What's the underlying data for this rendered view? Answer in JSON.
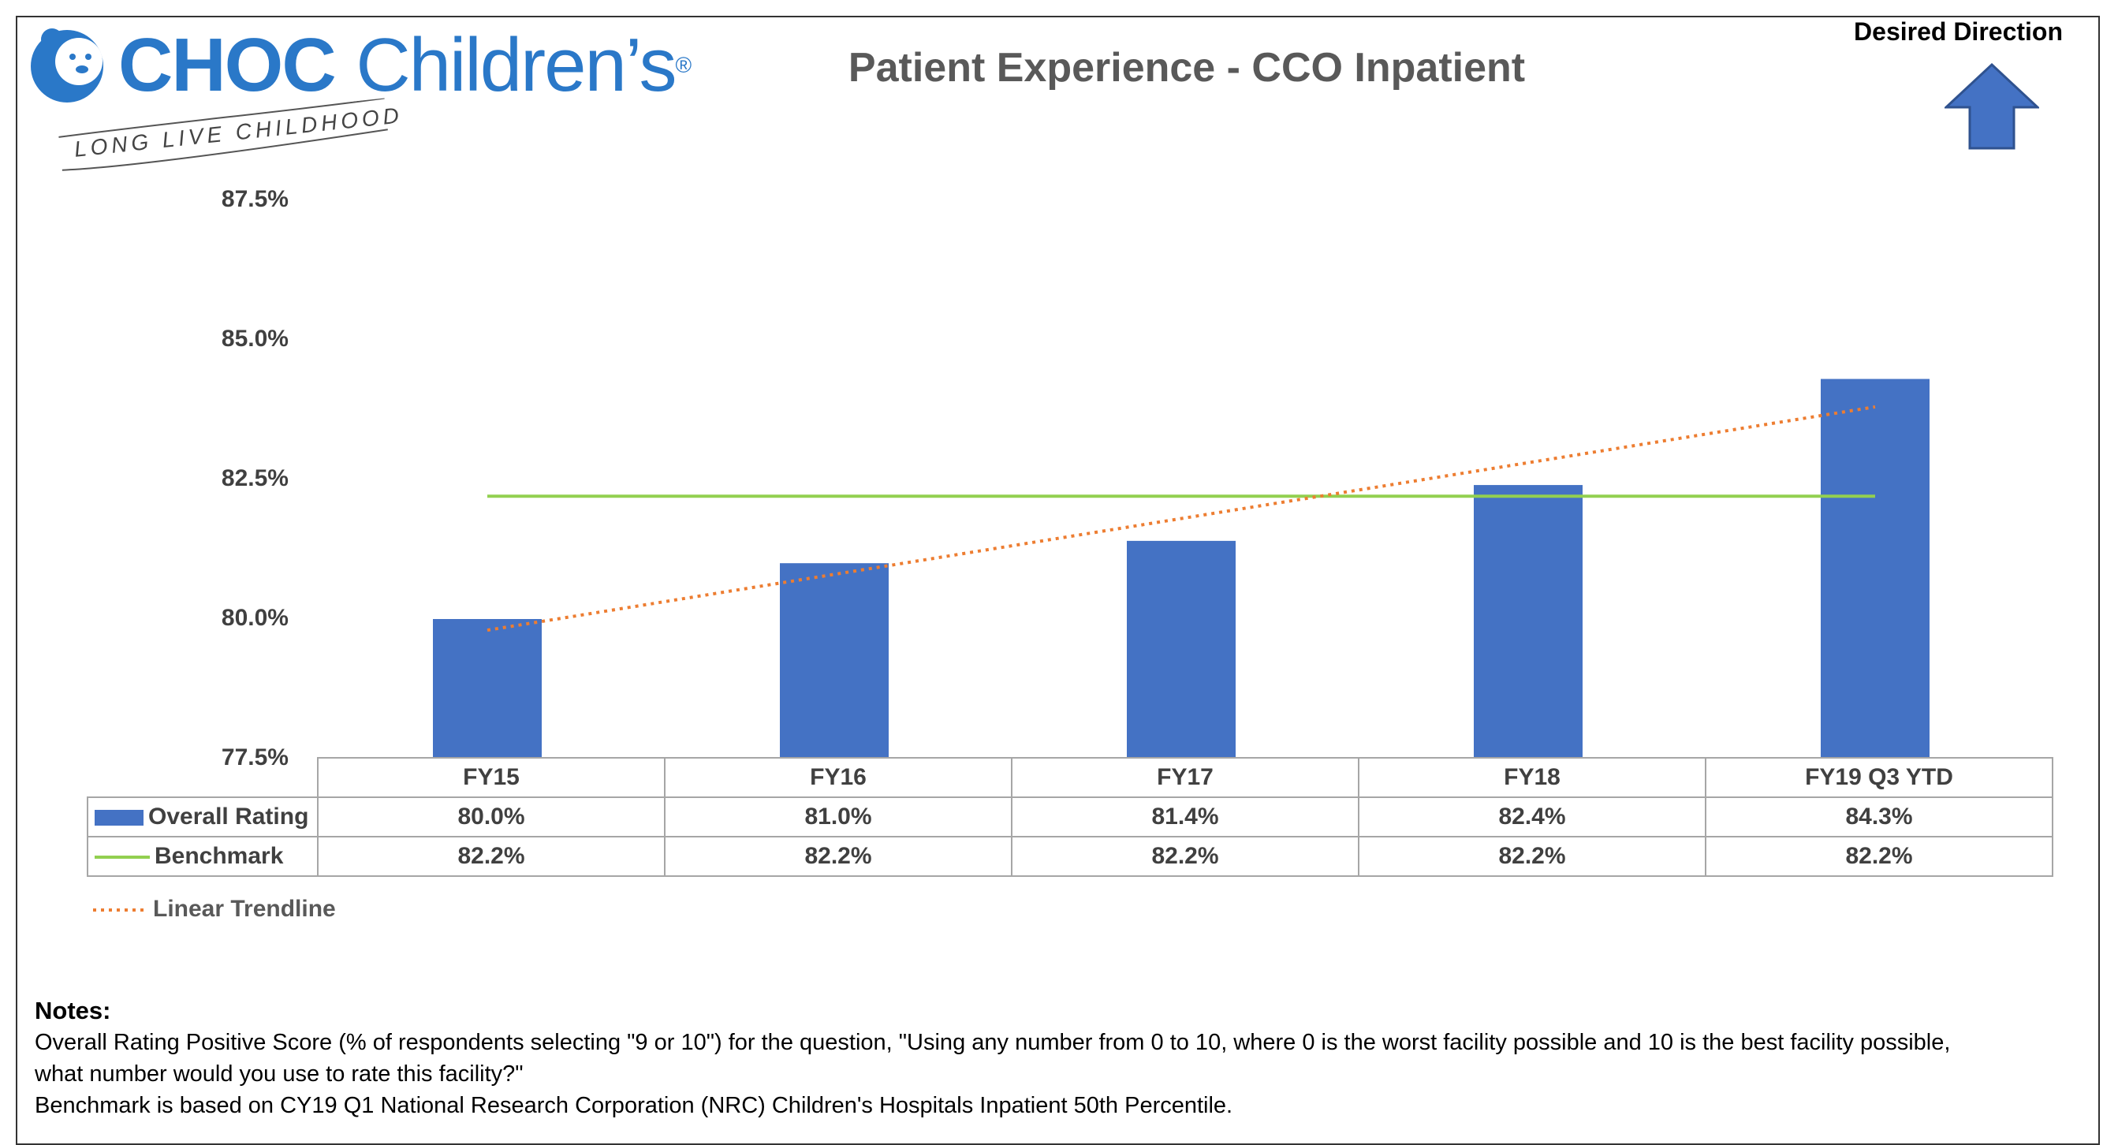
{
  "header": {
    "logo_brand": "CHOC",
    "logo_name": "Children’s",
    "logo_registered": "®",
    "logo_tagline": "LONG LIVE CHILDHOOD",
    "desired_direction": "Desired Direction"
  },
  "colors": {
    "bar": "#4472c4",
    "benchmark": "#92d050",
    "trendline": "#ed7d31",
    "logo": "#2a78c8"
  },
  "chart_data": {
    "type": "bar",
    "title": "Patient Experience - CCO Inpatient",
    "categories": [
      "FY15",
      "FY16",
      "FY17",
      "FY18",
      "FY19 Q3 YTD"
    ],
    "series": [
      {
        "name": "Overall Rating",
        "kind": "bar",
        "values": [
          80.0,
          81.0,
          81.4,
          82.4,
          84.3
        ],
        "labels": [
          "80.0%",
          "81.0%",
          "81.4%",
          "82.4%",
          "84.3%"
        ]
      },
      {
        "name": "Benchmark",
        "kind": "line",
        "values": [
          82.2,
          82.2,
          82.2,
          82.2,
          82.2
        ],
        "labels": [
          "82.2%",
          "82.2%",
          "82.2%",
          "82.2%",
          "82.2%"
        ]
      },
      {
        "name": "Linear Trendline",
        "kind": "trendline",
        "start": 79.8,
        "end": 83.8
      }
    ],
    "ylim": [
      77.5,
      87.5
    ],
    "yticks": [
      87.5,
      85.0,
      82.5,
      80.0,
      77.5
    ],
    "ytick_labels": [
      "87.5%",
      "85.0%",
      "82.5%",
      "80.0%",
      "77.5%"
    ],
    "desired_direction": "up",
    "legend": "data table below chart"
  },
  "notes": {
    "heading": "Notes:",
    "line1": "Overall Rating Positive Score (% of respondents selecting \"9 or 10\") for the question, \"Using any number from 0 to 10, where 0 is the worst facility possible and 10 is the best facility possible,",
    "line2": "what number would you use to rate this facility?\"",
    "line3": "Benchmark is based on CY19 Q1 National Research Corporation (NRC) Children's Hospitals Inpatient 50th Percentile."
  }
}
